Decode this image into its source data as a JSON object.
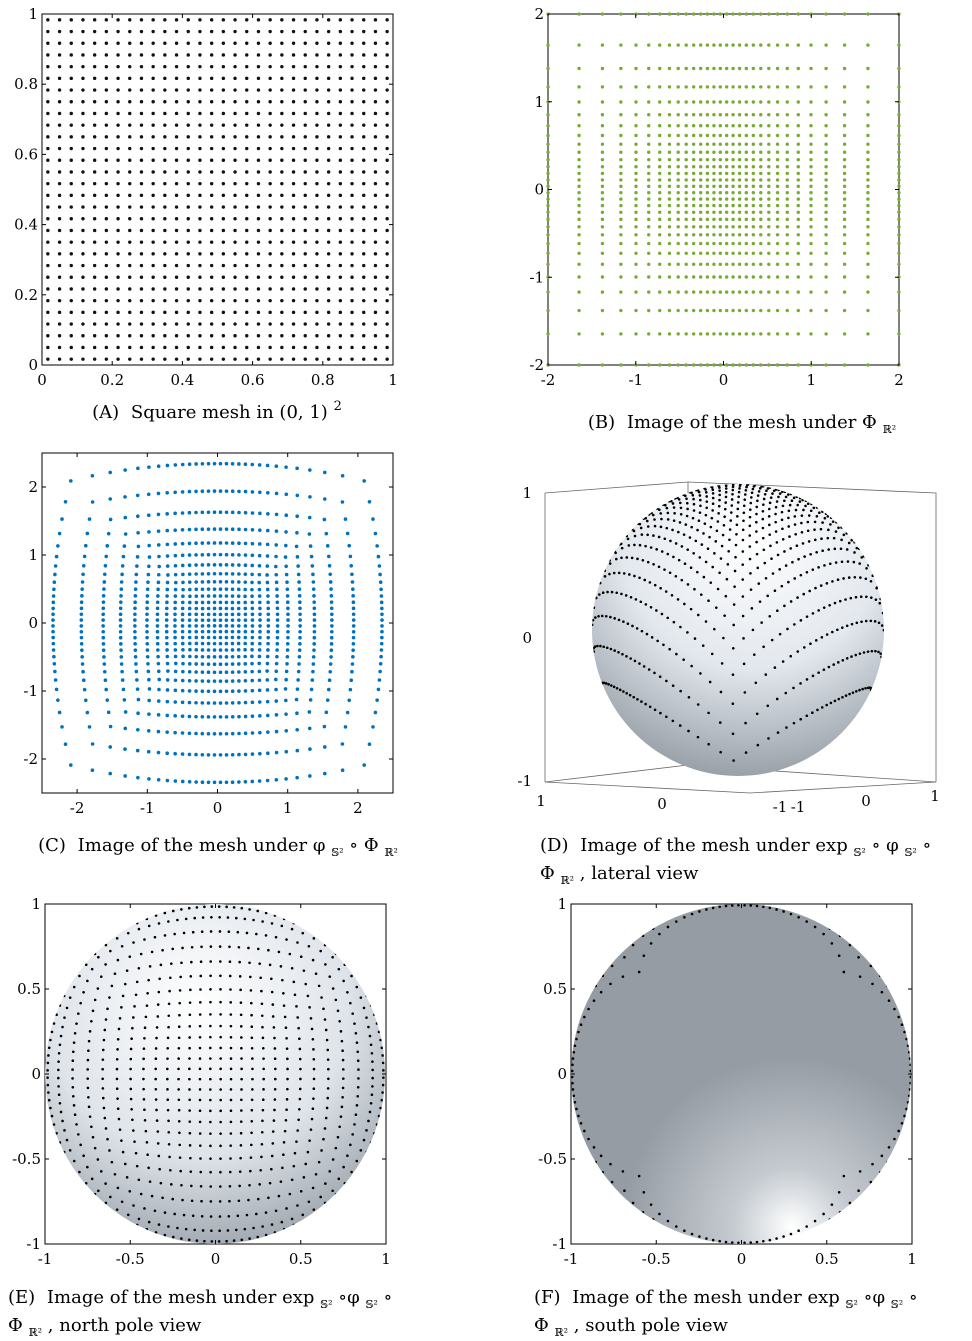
{
  "chart_data": [
    {
      "id": "A",
      "type": "scatter",
      "marker_color": "#111111",
      "mesh": {
        "n": 30,
        "min": 0.0167,
        "max": 0.9833
      },
      "xlim": [
        0,
        1
      ],
      "ylim": [
        0,
        1
      ],
      "xticks": [
        "0",
        "0.2",
        "0.4",
        "0.6",
        "0.8",
        "1"
      ],
      "yticks": [
        "0",
        "0.2",
        "0.4",
        "0.6",
        "0.8",
        "1"
      ],
      "caption": {
        "letter": "(A)",
        "text": "Square mesh in (0, 1)",
        "sup": "2"
      }
    },
    {
      "id": "B",
      "type": "scatter",
      "marker_color": "#77AC30",
      "mapping": "phi_R2",
      "xlim": [
        -2,
        2
      ],
      "ylim": [
        -2,
        2
      ],
      "xticks": [
        "-2",
        "-1",
        "0",
        "1",
        "2"
      ],
      "yticks": [
        "-2",
        "-1",
        "0",
        "1",
        "2"
      ],
      "caption": {
        "letter": "(B)",
        "text": "Image of the mesh under Φ",
        "sub": "ℝ²"
      }
    },
    {
      "id": "C",
      "type": "scatter",
      "marker_color": "#0072BD",
      "mapping": "phi_S2 ∘ Phi_R2",
      "xlim": [
        -2.5,
        2.5
      ],
      "ylim": [
        -2.5,
        2.5
      ],
      "xticks": [
        "-2",
        "-1",
        "0",
        "1",
        "2"
      ],
      "yticks": [
        "-2",
        "-1",
        "0",
        "1",
        "2"
      ],
      "caption": {
        "letter": "(C)",
        "text": "Image of the mesh under φ",
        "sub1": "𝕊²",
        "mid": " ∘ Φ",
        "sub2": "ℝ²"
      }
    },
    {
      "id": "D",
      "type": "scatter",
      "view": "lateral",
      "marker_color": "#000000",
      "zticks": [
        "1",
        "0",
        "-1"
      ],
      "xticks3d": [
        "1",
        "0",
        "-1"
      ],
      "yticks3d": [
        "-1",
        "0",
        "1"
      ],
      "caption": {
        "letter": "(D)",
        "line1": "Image of the mesh under exp",
        "sub1": "𝕊²",
        "mid1": " ∘ φ",
        "sub2": "𝕊²",
        "mid2": " ∘",
        "line2a": "Φ",
        "sub3": "ℝ²",
        "line2b": ", lateral view"
      }
    },
    {
      "id": "E",
      "type": "scatter",
      "view": "north pole",
      "marker_color": "#000000",
      "xlim": [
        -1,
        1
      ],
      "ylim": [
        -1,
        1
      ],
      "xticks": [
        "-1",
        "-0.5",
        "0",
        "0.5",
        "1"
      ],
      "yticks": [
        "-1",
        "-0.5",
        "0",
        "0.5",
        "1"
      ],
      "caption": {
        "letter": "(E)",
        "line1": "Image of the mesh under exp",
        "sub1": "𝕊²",
        "mid1": "∘φ",
        "sub2": "𝕊²",
        "mid2": "∘",
        "line2a": "Φ",
        "sub3": "ℝ²",
        "line2b": ", north pole view"
      }
    },
    {
      "id": "F",
      "type": "scatter",
      "view": "south pole",
      "marker_color": "#000000",
      "xlim": [
        -1,
        1
      ],
      "ylim": [
        -1,
        1
      ],
      "xticks": [
        "-1",
        "-0.5",
        "0",
        "0.5",
        "1"
      ],
      "yticks": [
        "-1",
        "-0.5",
        "0",
        "0.5",
        "1"
      ],
      "caption": {
        "letter": "(F)",
        "line1": "Image of the mesh under exp",
        "sub1": "𝕊²",
        "mid1": "∘φ",
        "sub2": "𝕊²",
        "mid2": "∘",
        "line2a": "Φ",
        "sub3": "ℝ²",
        "line2b": ", south pole view"
      }
    }
  ]
}
